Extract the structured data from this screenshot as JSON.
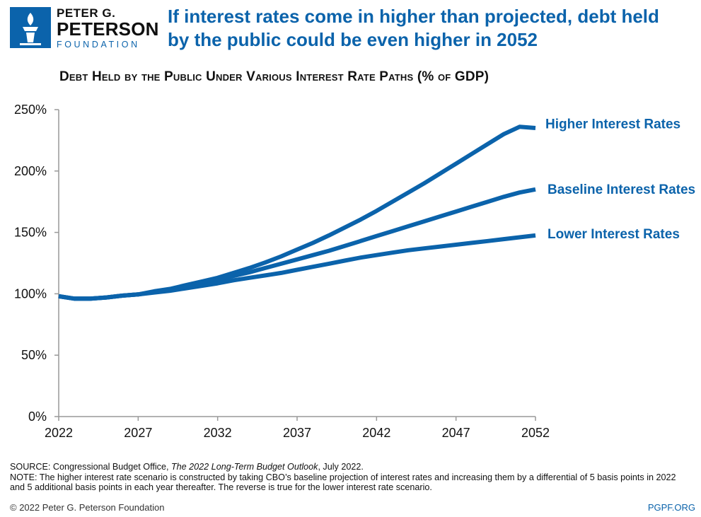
{
  "logo": {
    "line1": "PETER G.",
    "line2": "PETERSON",
    "line3": "FOUNDATION",
    "mark_color": "#0b63ab"
  },
  "headline": {
    "line1": "If interest rates come in higher than projected, debt held",
    "line2": "by the public could be even higher in 2052"
  },
  "chart_title": "Debt Held by the Public Under Various Interest Rate Paths (% of GDP)",
  "chart_data": {
    "type": "line",
    "title": "Debt Held by the Public Under Various Interest Rate Paths (% of GDP)",
    "xlabel": "",
    "ylabel": "",
    "xlim": [
      2022,
      2052
    ],
    "ylim": [
      0,
      250
    ],
    "x_ticks": [
      "2022",
      "2027",
      "2032",
      "2037",
      "2042",
      "2047",
      "2052"
    ],
    "y_ticks": [
      "0%",
      "50%",
      "100%",
      "150%",
      "200%",
      "250%"
    ],
    "grid": false,
    "line_color": "#0b63ab",
    "x": [
      2022,
      2023,
      2024,
      2025,
      2026,
      2027,
      2028,
      2029,
      2030,
      2031,
      2032,
      2033,
      2034,
      2035,
      2036,
      2037,
      2038,
      2039,
      2040,
      2041,
      2042,
      2043,
      2044,
      2045,
      2046,
      2047,
      2048,
      2049,
      2050,
      2051,
      2052
    ],
    "series": [
      {
        "name": "Higher Interest Rates",
        "values": [
          98,
          96,
          96,
          97,
          98.5,
          99.5,
          102,
          104,
          107,
          110,
          113,
          117,
          121,
          125.5,
          130.5,
          136,
          141.5,
          147.5,
          154,
          160.5,
          167.5,
          175,
          182.5,
          190,
          198,
          206,
          214,
          222,
          230,
          236,
          235
        ]
      },
      {
        "name": "Baseline Interest Rates",
        "values": [
          98,
          96,
          96,
          97,
          98.5,
          99.5,
          101.5,
          103,
          105.5,
          108.5,
          111.5,
          114.5,
          117.5,
          121,
          124.5,
          128,
          131.5,
          135,
          139,
          143,
          147,
          151,
          155,
          159,
          163,
          167,
          171,
          175,
          179,
          182.5,
          185
        ]
      },
      {
        "name": "Lower Interest Rates",
        "values": [
          98,
          96,
          96,
          97,
          98.5,
          99.5,
          101,
          102.5,
          104.5,
          106.5,
          108.5,
          111,
          113,
          115,
          117,
          119.5,
          122,
          124.5,
          127,
          129.5,
          131.5,
          133.5,
          135.5,
          137,
          138.5,
          140,
          141.5,
          143,
          144.5,
          146,
          147.5
        ]
      }
    ]
  },
  "footnotes": {
    "source_prefix": "SOURCE: Congressional Budget Office, ",
    "source_title": "The 2022 Long-Term Budget Outlook",
    "source_suffix": ", July 2022.",
    "note": "NOTE: The higher interest rate scenario is constructed by taking CBO’s baseline projection of interest rates and increasing them by a differential of 5 basis points in 2022 and 5 additional basis points in each year thereafter. The reverse is true for the lower interest rate scenario."
  },
  "copyright": "© 2022 Peter G. Peterson Foundation",
  "site": "PGPF.ORG"
}
